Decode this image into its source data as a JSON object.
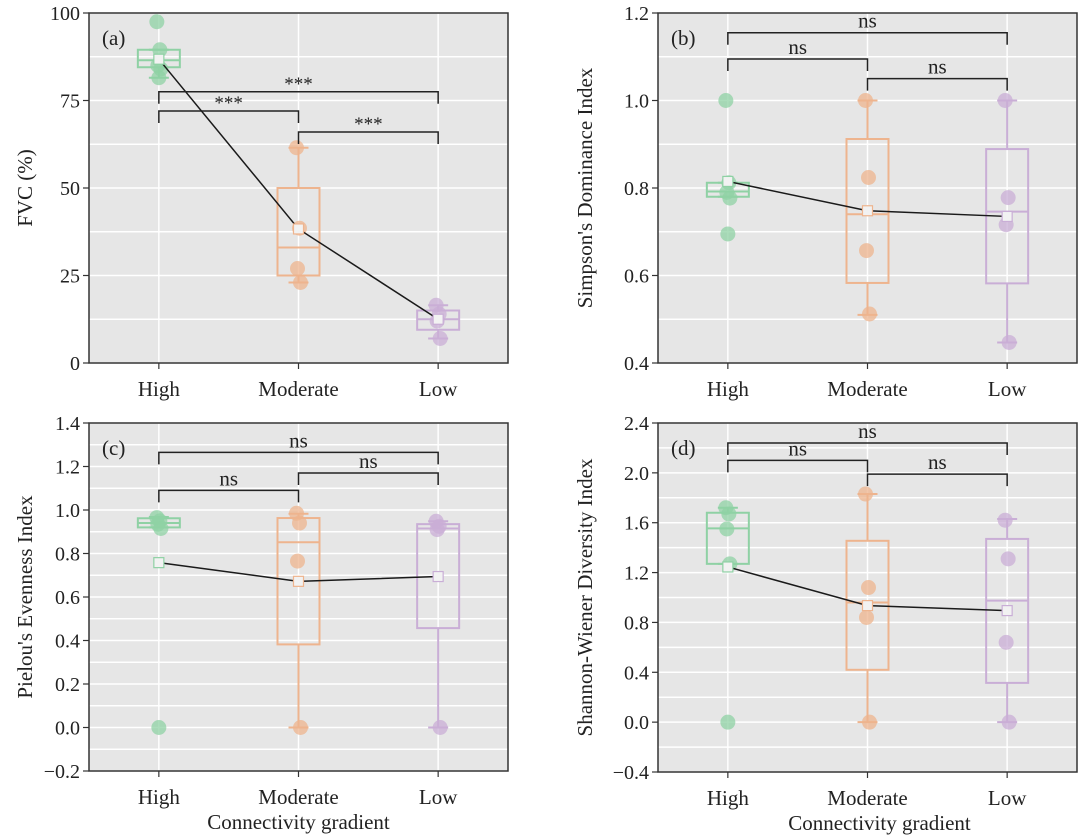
{
  "figure": {
    "x_axis_label": "Connectivity gradient"
  },
  "colors": {
    "High": "#8fd1a4",
    "Moderate": "#eeb48e",
    "Low": "#c9aed6",
    "panel_bg": "#e6e6e6",
    "grid": "#ffffff",
    "mean_line": "#1a1a1a"
  },
  "chart_data": [
    {
      "type": "box",
      "panel_label": "(a)",
      "title": "",
      "xlabel": "",
      "ylabel": "FVC (%)",
      "categories": [
        "High",
        "Moderate",
        "Low"
      ],
      "ylim": [
        0,
        100
      ],
      "yticks": [
        0,
        25,
        50,
        75,
        100
      ],
      "ytick_labels": [
        "0",
        "25",
        "50",
        "75",
        "100"
      ],
      "minor_grid": [
        12.5,
        37.5,
        62.5,
        87.5
      ],
      "grid": true,
      "boxes": [
        {
          "category": "High",
          "whisker_low": 81.5,
          "q1": 84.5,
          "median": 86.5,
          "q3": 89.5,
          "whisker_high": 89.5,
          "mean": 86.8
        },
        {
          "category": "Moderate",
          "whisker_low": 23,
          "q1": 25,
          "median": 33,
          "q3": 50,
          "whisker_high": 61.5,
          "mean": 38.3
        },
        {
          "category": "Low",
          "whisker_low": 7,
          "q1": 9.5,
          "median": 12.5,
          "q3": 15,
          "whisker_high": 16.5,
          "mean": 12.5
        }
      ],
      "points": [
        {
          "category": "High",
          "values": [
            97.5,
            89.5,
            85,
            84,
            81.5
          ]
        },
        {
          "category": "Moderate",
          "values": [
            61.5,
            38.5,
            27,
            23
          ]
        },
        {
          "category": "Low",
          "values": [
            16.5,
            14,
            12,
            7
          ]
        }
      ],
      "means": [
        86.8,
        38.3,
        12.5
      ],
      "significance": [
        {
          "from": "High",
          "to": "Moderate",
          "label": "***",
          "y": 72
        },
        {
          "from": "High",
          "to": "Low",
          "label": "***",
          "y": 77.5
        },
        {
          "from": "Moderate",
          "to": "Low",
          "label": "***",
          "y": 66
        }
      ]
    },
    {
      "type": "box",
      "panel_label": "(b)",
      "title": "",
      "xlabel": "",
      "ylabel": "Simpson's Dominance Index",
      "categories": [
        "High",
        "Moderate",
        "Low"
      ],
      "ylim": [
        0.4,
        1.2
      ],
      "yticks": [
        0.4,
        0.6,
        0.8,
        1.0,
        1.2
      ],
      "ytick_labels": [
        "0.4",
        "0.6",
        "0.8",
        "1.0",
        "1.2"
      ],
      "minor_grid": [
        0.5,
        0.7,
        0.9,
        1.1
      ],
      "grid": true,
      "boxes": [
        {
          "category": "High",
          "whisker_low": 0.78,
          "q1": 0.78,
          "median": 0.792,
          "q3": 0.812,
          "whisker_high": 0.812,
          "mean": 0.815
        },
        {
          "category": "Moderate",
          "whisker_low": 0.51,
          "q1": 0.583,
          "median": 0.74,
          "q3": 0.912,
          "whisker_high": 1.0,
          "mean": 0.748
        },
        {
          "category": "Low",
          "whisker_low": 0.447,
          "q1": 0.582,
          "median": 0.746,
          "q3": 0.889,
          "whisker_high": 1.0,
          "mean": 0.735
        }
      ],
      "points": [
        {
          "category": "High",
          "values": [
            1.0,
            0.812,
            0.79,
            0.777,
            0.695
          ]
        },
        {
          "category": "Moderate",
          "values": [
            1.0,
            0.824,
            0.657,
            0.512
          ]
        },
        {
          "category": "Low",
          "values": [
            1.0,
            0.778,
            0.716,
            0.447
          ]
        }
      ],
      "means": [
        0.815,
        0.748,
        0.735
      ],
      "significance": [
        {
          "from": "High",
          "to": "Moderate",
          "label": "ns",
          "y": 1.095
        },
        {
          "from": "High",
          "to": "Low",
          "label": "ns",
          "y": 1.155
        },
        {
          "from": "Moderate",
          "to": "Low",
          "label": "ns",
          "y": 1.05
        }
      ]
    },
    {
      "type": "box",
      "panel_label": "(c)",
      "title": "",
      "xlabel": "Connectivity gradient",
      "ylabel": "Pielou's Evenness Index",
      "categories": [
        "High",
        "Moderate",
        "Low"
      ],
      "ylim": [
        -0.2,
        1.4
      ],
      "yticks": [
        -0.2,
        0.0,
        0.2,
        0.4,
        0.6,
        0.8,
        1.0,
        1.2,
        1.4
      ],
      "ytick_labels": [
        "−0.2",
        "0.0",
        "0.2",
        "0.4",
        "0.6",
        "0.8",
        "1.0",
        "1.2",
        "1.4"
      ],
      "minor_grid": [
        -0.1,
        0.1,
        0.3,
        0.5,
        0.7,
        0.9,
        1.1,
        1.3
      ],
      "grid": true,
      "boxes": [
        {
          "category": "High",
          "whisker_low": 0.92,
          "q1": 0.92,
          "median": 0.94,
          "q3": 0.962,
          "whisker_high": 0.968,
          "mean": 0.758
        },
        {
          "category": "Moderate",
          "whisker_low": 0.0,
          "q1": 0.382,
          "median": 0.852,
          "q3": 0.963,
          "whisker_high": 0.983,
          "mean": 0.672
        },
        {
          "category": "Low",
          "whisker_low": 0.0,
          "q1": 0.457,
          "median": 0.915,
          "q3": 0.935,
          "whisker_high": 0.948,
          "mean": 0.694
        }
      ],
      "points": [
        {
          "category": "High",
          "values": [
            0.965,
            0.95,
            0.935,
            0.915,
            0.0
          ]
        },
        {
          "category": "Moderate",
          "values": [
            0.985,
            0.94,
            0.765,
            0.0
          ]
        },
        {
          "category": "Low",
          "values": [
            0.948,
            0.925,
            0.91,
            0.0
          ]
        }
      ],
      "means": [
        0.758,
        0.672,
        0.694
      ],
      "significance": [
        {
          "from": "High",
          "to": "Moderate",
          "label": "ns",
          "y": 1.09
        },
        {
          "from": "High",
          "to": "Low",
          "label": "ns",
          "y": 1.265
        },
        {
          "from": "Moderate",
          "to": "Low",
          "label": "ns",
          "y": 1.17
        }
      ]
    },
    {
      "type": "box",
      "panel_label": "(d)",
      "title": "",
      "xlabel": "Connectivity gradient",
      "ylabel": "Shannon-Wiener Diversity Index",
      "categories": [
        "High",
        "Moderate",
        "Low"
      ],
      "ylim": [
        -0.4,
        2.4
      ],
      "yticks": [
        -0.4,
        0.0,
        0.4,
        0.8,
        1.2,
        1.6,
        2.0,
        2.4
      ],
      "ytick_labels": [
        "−0.4",
        "0.0",
        "0.4",
        "0.8",
        "1.2",
        "1.6",
        "2.0",
        "2.4"
      ],
      "minor_grid": [
        -0.2,
        0.2,
        0.6,
        1.0,
        1.4,
        1.8,
        2.2
      ],
      "grid": true,
      "boxes": [
        {
          "category": "High",
          "whisker_low": 1.27,
          "q1": 1.27,
          "median": 1.555,
          "q3": 1.68,
          "whisker_high": 1.72,
          "mean": 1.245
        },
        {
          "category": "Moderate",
          "whisker_low": 0.0,
          "q1": 0.42,
          "median": 0.96,
          "q3": 1.455,
          "whisker_high": 1.83,
          "mean": 0.935
        },
        {
          "category": "Low",
          "whisker_low": 0.0,
          "q1": 0.315,
          "median": 0.975,
          "q3": 1.47,
          "whisker_high": 1.63,
          "mean": 0.895
        }
      ],
      "points": [
        {
          "category": "High",
          "values": [
            1.72,
            1.67,
            1.55,
            1.27,
            0.0
          ]
        },
        {
          "category": "Moderate",
          "values": [
            1.83,
            1.08,
            0.84,
            0.0
          ]
        },
        {
          "category": "Low",
          "values": [
            1.62,
            1.31,
            0.64,
            0.0
          ]
        }
      ],
      "means": [
        1.245,
        0.935,
        0.895
      ],
      "significance": [
        {
          "from": "High",
          "to": "Moderate",
          "label": "ns",
          "y": 2.1
        },
        {
          "from": "High",
          "to": "Low",
          "label": "ns",
          "y": 2.24
        },
        {
          "from": "Moderate",
          "to": "Low",
          "label": "ns",
          "y": 1.99
        }
      ]
    }
  ]
}
